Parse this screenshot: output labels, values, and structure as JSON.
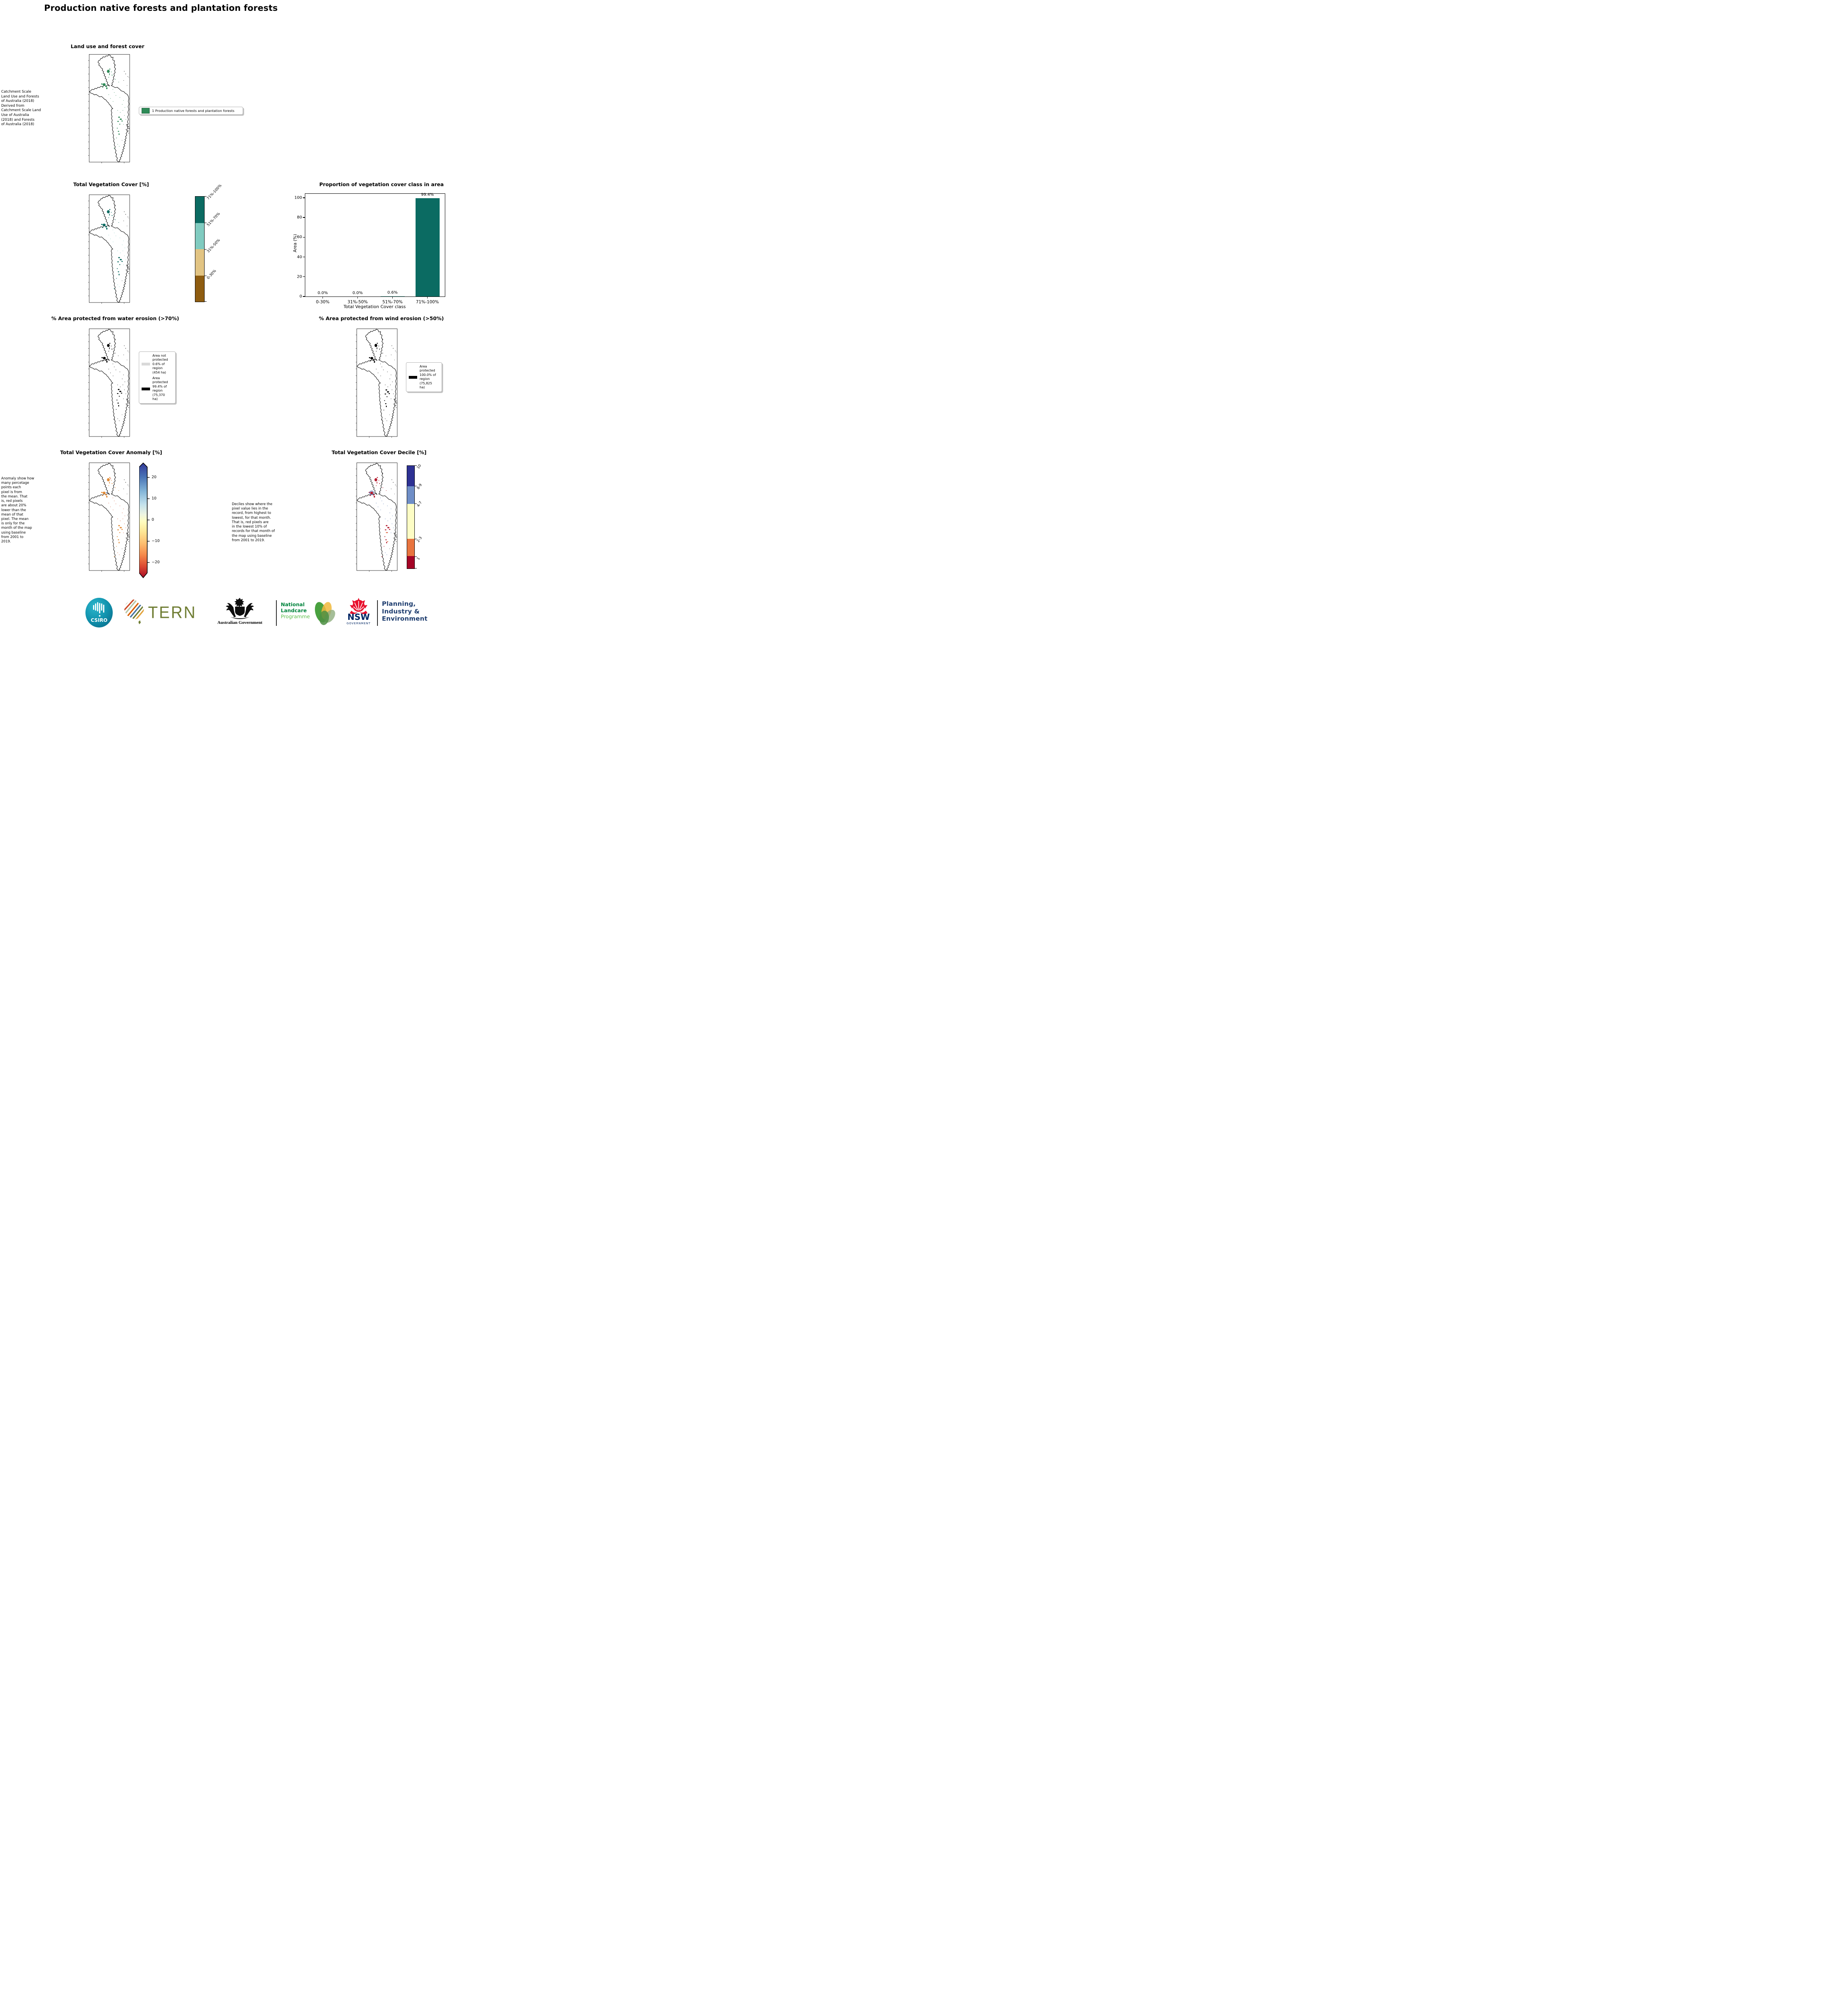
{
  "title": "Production native forests and plantation forests",
  "panels": {
    "land_use": {
      "title": "Land use and forest cover",
      "source_note": " Catchment Scale\nLand Use and Forests\nof Australia (2018)\nDerived from\nCatchment Scale Land\nUse of Australia\n(2018) and Forests\nof Australia (2018)",
      "legend_label": "1 Production native forests and plantation forests",
      "legend_color": "#2e8b57"
    },
    "tvc": {
      "title": "Total Vegetation Cover [%]",
      "classes": [
        {
          "label": "71%-100%",
          "color": "#0b6b62"
        },
        {
          "label": "51%-70%",
          "color": "#80cbc0"
        },
        {
          "label": "31%-50%",
          "color": "#e2c483"
        },
        {
          "label": "0-30%",
          "color": "#8e5c10"
        }
      ]
    },
    "water": {
      "title": "% Area protected from water erosion (>70%)",
      "legend": [
        {
          "swatch_color": "#d9d9d9",
          "label": "Area not\nprotected\n0.6% of\nregion\n(454 ha)"
        },
        {
          "swatch_color": "#000000",
          "label": "Area\nprotected\n99.4% of\nregion\n(75,370\nha)"
        }
      ]
    },
    "wind": {
      "title": "% Area protected from wind erosion (>50%)",
      "legend": [
        {
          "swatch_color": "#000000",
          "label": "Area\nprotected\n100.0% of\nregion\n(75,825\nha)"
        }
      ]
    },
    "anomaly": {
      "title": "Total Vegetation Cover Anomaly [%]",
      "note": "Anomaly show how\nmany percetage\npoints each\npixel is from\nthe mean. That\nis, red pixels\nare about 20%\nlower than the\nmean of that\npixel. The mean\nis only for the\nmonth of the map\nusing baseline\nfrom 2001 to\n2019.",
      "colorbar_ticks": [
        "20",
        "10",
        "0",
        "−10",
        "−20"
      ]
    },
    "decile": {
      "title": "Total Vegetation Cover Decile [%]",
      "note": "Deciles show where the\npixel value lies in the\nrecord, from highest to\nlowest, for that month.\nThat is, red pixels are\nin the lowest 10% of\nrecords for that month of\nthe map using baseline\nfrom 2001 to 2019.",
      "classes": [
        {
          "label": "10",
          "color": "#2d3193"
        },
        {
          "label": "8-9",
          "color": "#6f8ec7"
        },
        {
          "label": "4-7",
          "color": "#fdfdc5"
        },
        {
          "label": "2-3",
          "color": "#e8743f"
        },
        {
          "label": "1",
          "color": "#a40426"
        }
      ]
    }
  },
  "chart_data": {
    "type": "bar",
    "title": "Proportion of vegetation cover class in area",
    "categories": [
      "0-30%",
      "31%-50%",
      "51%-70%",
      "71%-100%"
    ],
    "values": [
      0.0,
      0.0,
      0.6,
      99.4
    ],
    "value_labels": [
      "0.0%",
      "0.0%",
      "0.6%",
      "99.4%"
    ],
    "xlabel": "Total Vegetation Cover class",
    "ylabel": "Area (%)",
    "ylim": [
      0,
      100
    ],
    "yticks": [
      0,
      20,
      40,
      60,
      80,
      100
    ],
    "bar_colors": [
      "#8e5c10",
      "#e2c483",
      "#80cbc0",
      "#0b6b62"
    ],
    "legend_position": "none",
    "grid": false
  },
  "footer": {
    "csiro": {
      "label": "CSIRO",
      "color": "#0e8fa8"
    },
    "tern": {
      "label": "TERN",
      "color": "#6f7d33"
    },
    "aus_gov": {
      "label": "Australian Government"
    },
    "landcare": {
      "line1": "National",
      "line2": "Landcare",
      "line3": "Programme",
      "color_bold": "#00843d",
      "color_light": "#5fbf4e"
    },
    "nsw": {
      "label": "NSW",
      "sub": "GOVERNMENT",
      "navy": "#002664",
      "red": "#e8112d"
    },
    "dpie": {
      "line1": "Planning,",
      "line2": "Industry &",
      "line3": "Environment",
      "color": "#1d3c6e"
    }
  }
}
